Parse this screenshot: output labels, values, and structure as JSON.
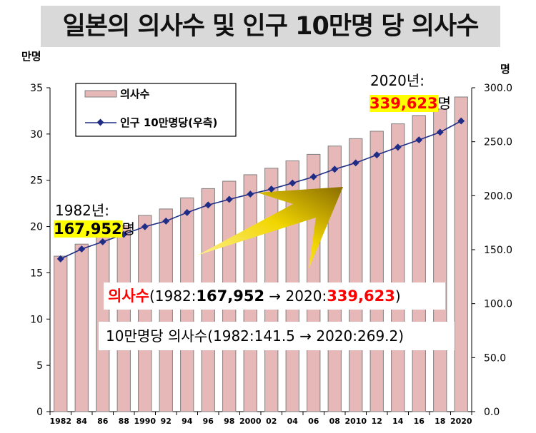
{
  "title": "일본의 의사수 및 인구 10만명 당 의사수",
  "chart_data": {
    "type": "bar+line",
    "categories": [
      "1982",
      "84",
      "86",
      "88",
      "1990",
      "92",
      "94",
      "96",
      "98",
      "2000",
      "02",
      "04",
      "06",
      "08",
      "2010",
      "12",
      "14",
      "16",
      "18",
      "2020"
    ],
    "series": [
      {
        "name": "의사수",
        "type": "bar",
        "axis": "left",
        "values": [
          16.8,
          18.1,
          19.1,
          20.1,
          21.2,
          21.9,
          23.1,
          24.1,
          24.9,
          25.6,
          26.3,
          27.1,
          27.8,
          28.7,
          29.5,
          30.3,
          31.1,
          32.0,
          32.7,
          34.0
        ]
      },
      {
        "name": "인구 10만명당(우측)",
        "type": "line",
        "axis": "right",
        "values": [
          141.5,
          150.6,
          157.3,
          164.2,
          171.3,
          176.5,
          184.4,
          191.4,
          196.6,
          201.5,
          206.1,
          211.7,
          217.5,
          224.5,
          230.4,
          237.8,
          244.9,
          251.7,
          258.8,
          269.2
        ]
      }
    ],
    "y_left": {
      "unit_label": "만명",
      "min": 0,
      "max": 35,
      "step": 5,
      "tick_labels": [
        "0",
        "5",
        "10",
        "15",
        "20",
        "25",
        "30",
        "35"
      ]
    },
    "y_right": {
      "unit_label": "명",
      "min": 0,
      "max": 300,
      "step": 50,
      "tick_labels": [
        "0.0",
        "50.0",
        "100.0",
        "150.0",
        "200.0",
        "250.0",
        "300.0"
      ]
    },
    "legend": {
      "position": "top-left"
    },
    "colors": {
      "bar_fill": "#e7b8b8",
      "bar_stroke": "#7f7f7f",
      "line": "#1f2d87",
      "marker": "#1f2d87",
      "arrow": "#f2d600"
    }
  },
  "annotations": {
    "start_year_label": "1982년:",
    "start_value": "167,952",
    "start_unit": "명",
    "end_year_label": "2020년:",
    "end_value": "339,623",
    "end_unit": "명",
    "summary_doctors": {
      "label": "의사수",
      "open": "(1982:",
      "from": "167,952",
      "arrow": " → 2020:",
      "to": "339,623",
      "close": ")"
    },
    "summary_per100k": "10만명당 의사수(1982:141.5 → 2020:269.2)"
  }
}
